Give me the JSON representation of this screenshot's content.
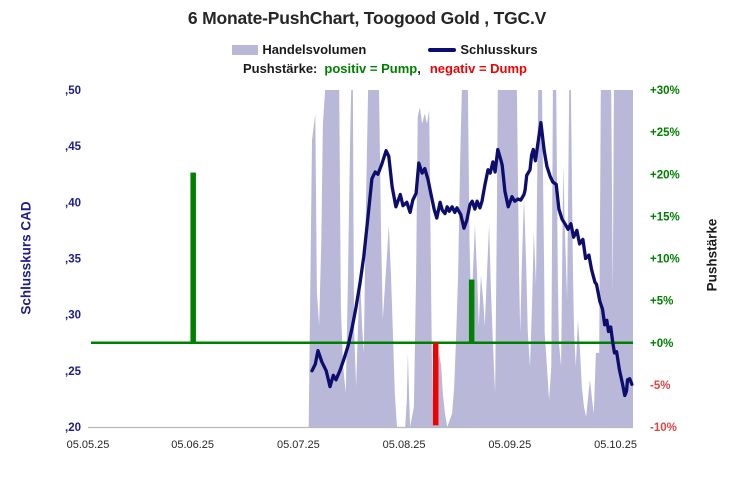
{
  "title": "6 Monate-PushChart,  Toogood Gold , TGC.V",
  "legend": {
    "volume_label": "Handelsvolumen",
    "price_label": "Schlusskurs",
    "push_prefix": "Pushstärke:",
    "push_positive": "positiv = Pump",
    "push_separator": ",",
    "push_negative": "negativ = Dump"
  },
  "colors": {
    "volume": "#b9b8d8",
    "price_line": "#0d0d6d",
    "push_positive": "#008000",
    "push_negative": "#ee0202",
    "zero_line": "#008000",
    "left_axis_text": "#1c1c8f",
    "right_axis_positive": "#008000",
    "right_axis_negative": "#e04545",
    "x_axis_text": "#262626",
    "baseline": "#b9b9b9"
  },
  "chart_data": {
    "type": "composite",
    "title": "6 Monate-PushChart,  Toogood Gold , TGC.V",
    "left_axis": {
      "title": "Schlusskurs CAD",
      "range": [
        0.2,
        0.5
      ],
      "ticks": [
        {
          "value": 0.5,
          "label": ",50"
        },
        {
          "value": 0.45,
          "label": ",45"
        },
        {
          "value": 0.4,
          "label": ",40"
        },
        {
          "value": 0.35,
          "label": ",35"
        },
        {
          "value": 0.3,
          "label": ",30"
        },
        {
          "value": 0.25,
          "label": ",25"
        },
        {
          "value": 0.2,
          "label": ",20"
        }
      ]
    },
    "right_axis": {
      "title": "Pushstärke",
      "unit": "%",
      "range": [
        -10,
        30
      ],
      "ticks": [
        {
          "value": 30,
          "label": "+30%",
          "tone": "positive"
        },
        {
          "value": 25,
          "label": "+25%",
          "tone": "positive"
        },
        {
          "value": 20,
          "label": "+20%",
          "tone": "positive"
        },
        {
          "value": 15,
          "label": "+15%",
          "tone": "positive"
        },
        {
          "value": 10,
          "label": "+10%",
          "tone": "positive"
        },
        {
          "value": 5,
          "label": "+5%",
          "tone": "positive"
        },
        {
          "value": 0,
          "label": "+0%",
          "tone": "positive"
        },
        {
          "value": -5,
          "label": "-5%",
          "tone": "negative"
        },
        {
          "value": -10,
          "label": "-10%",
          "tone": "negative"
        }
      ]
    },
    "x_axis": {
      "note": "x values of all series are fractions 0-1 of the horizontal axis; tick fractions below",
      "ticks": [
        {
          "x": 0.0,
          "label": "05.05.25"
        },
        {
          "x": 0.192,
          "label": "05.06.25"
        },
        {
          "x": 0.386,
          "label": "05.07.25"
        },
        {
          "x": 0.58,
          "label": "05.08.25"
        },
        {
          "x": 0.774,
          "label": "05.09.25"
        },
        {
          "x": 0.968,
          "label": "05.10.25"
        }
      ]
    },
    "zero_line_pct": 0,
    "series": [
      {
        "name": "Handelsvolumen",
        "type": "area",
        "axis": "none",
        "unit": "relative volume 0-1 (no volume axis shown, tall spikes clipped at plot top)",
        "points": [
          [
            0.405,
            0
          ],
          [
            0.411,
            0.85
          ],
          [
            0.417,
            0.93
          ],
          [
            0.42,
            0.4
          ],
          [
            0.424,
            0.3
          ],
          [
            0.428,
            0.55
          ],
          [
            0.431,
            0.9
          ],
          [
            0.435,
            1
          ],
          [
            0.461,
            1
          ],
          [
            0.464,
            0.35
          ],
          [
            0.468,
            0.18
          ],
          [
            0.473,
            0.1
          ],
          [
            0.477,
            0.45
          ],
          [
            0.481,
            0.85
          ],
          [
            0.483,
            1
          ],
          [
            0.486,
            1
          ],
          [
            0.488,
            0.3
          ],
          [
            0.492,
            0.12
          ],
          [
            0.495,
            0.28
          ],
          [
            0.499,
            0.45
          ],
          [
            0.503,
            0.3
          ],
          [
            0.506,
            0.22
          ],
          [
            0.51,
            0.65
          ],
          [
            0.514,
            1
          ],
          [
            0.534,
            1
          ],
          [
            0.538,
            0.55
          ],
          [
            0.541,
            0.32
          ],
          [
            0.545,
            0.42
          ],
          [
            0.549,
            0.52
          ],
          [
            0.552,
            0.6
          ],
          [
            0.556,
            0.45
          ],
          [
            0.56,
            0.25
          ],
          [
            0.563,
            0.1
          ],
          [
            0.567,
            0
          ],
          [
            0.582,
            0
          ],
          [
            0.585,
            0.08
          ],
          [
            0.587,
            0.22
          ],
          [
            0.589,
            0.1
          ],
          [
            0.591,
            0
          ],
          [
            0.598,
            0.06
          ],
          [
            0.602,
            0.45
          ],
          [
            0.605,
            0.92
          ],
          [
            0.609,
            0.95
          ],
          [
            0.613,
            0.9
          ],
          [
            0.618,
            0.93
          ],
          [
            0.622,
            0.9
          ],
          [
            0.626,
            0.94
          ],
          [
            0.629,
            0.5
          ],
          [
            0.631,
            0.2
          ],
          [
            0.633,
            0.08
          ],
          [
            0.637,
            0
          ],
          [
            0.64,
            0.08
          ],
          [
            0.644,
            0.22
          ],
          [
            0.648,
            0.18
          ],
          [
            0.651,
            0.1
          ],
          [
            0.655,
            0.04
          ],
          [
            0.659,
            0
          ],
          [
            0.668,
            0.04
          ],
          [
            0.672,
            0.12
          ],
          [
            0.675,
            0.25
          ],
          [
            0.679,
            0.45
          ],
          [
            0.683,
            0.8
          ],
          [
            0.686,
            1
          ],
          [
            0.697,
            1
          ],
          [
            0.7,
            0.55
          ],
          [
            0.703,
            0.35
          ],
          [
            0.706,
            0.45
          ],
          [
            0.71,
            0.6
          ],
          [
            0.714,
            0.45
          ],
          [
            0.717,
            0.3
          ],
          [
            0.721,
            0.45
          ],
          [
            0.725,
            0.38
          ],
          [
            0.728,
            0.3
          ],
          [
            0.732,
            0.45
          ],
          [
            0.736,
            0.6
          ],
          [
            0.739,
            0.42
          ],
          [
            0.743,
            0.25
          ],
          [
            0.747,
            0.1
          ],
          [
            0.75,
            0.6
          ],
          [
            0.752,
            1
          ],
          [
            0.787,
            1
          ],
          [
            0.791,
            0.45
          ],
          [
            0.793,
            0.28
          ],
          [
            0.796,
            0.48
          ],
          [
            0.8,
            0.68
          ],
          [
            0.804,
            0.48
          ],
          [
            0.807,
            0.28
          ],
          [
            0.811,
            0.18
          ],
          [
            0.815,
            0.38
          ],
          [
            0.818,
            0.58
          ],
          [
            0.822,
            0.42
          ],
          [
            0.826,
            1
          ],
          [
            0.833,
            1
          ],
          [
            0.837,
            0.45
          ],
          [
            0.838,
            0.28
          ],
          [
            0.842,
            0.18
          ],
          [
            0.846,
            0.08
          ],
          [
            0.85,
            0.18
          ],
          [
            0.853,
            1
          ],
          [
            0.859,
            1
          ],
          [
            0.862,
            0.45
          ],
          [
            0.864,
            0.25
          ],
          [
            0.868,
            0.18
          ],
          [
            0.872,
            0.78
          ],
          [
            0.875,
            0.58
          ],
          [
            0.879,
            0.38
          ],
          [
            0.883,
            1
          ],
          [
            0.886,
            1
          ],
          [
            0.89,
            0.45
          ],
          [
            0.892,
            0.28
          ],
          [
            0.895,
            0.18
          ],
          [
            0.899,
            0.32
          ],
          [
            0.903,
            0.22
          ],
          [
            0.906,
            0.12
          ],
          [
            0.91,
            0.06
          ],
          [
            0.914,
            0.03
          ],
          [
            0.917,
            0.08
          ],
          [
            0.921,
            0.14
          ],
          [
            0.925,
            0.08
          ],
          [
            0.928,
            0.04
          ],
          [
            0.932,
            0.22
          ],
          [
            0.938,
            0.22
          ],
          [
            0.941,
            1
          ],
          [
            0.96,
            1
          ],
          [
            0.963,
            0.4
          ],
          [
            0.965,
            1
          ],
          [
            1.0,
            1
          ]
        ]
      },
      {
        "name": "Schlusskurs",
        "type": "line",
        "axis": "left",
        "unit": "CAD",
        "points": [
          [
            0.411,
            0.25
          ],
          [
            0.417,
            0.256
          ],
          [
            0.422,
            0.268
          ],
          [
            0.429,
            0.258
          ],
          [
            0.437,
            0.25
          ],
          [
            0.444,
            0.236
          ],
          [
            0.45,
            0.246
          ],
          [
            0.455,
            0.242
          ],
          [
            0.463,
            0.251
          ],
          [
            0.47,
            0.261
          ],
          [
            0.477,
            0.272
          ],
          [
            0.484,
            0.287
          ],
          [
            0.492,
            0.307
          ],
          [
            0.499,
            0.328
          ],
          [
            0.506,
            0.352
          ],
          [
            0.514,
            0.388
          ],
          [
            0.521,
            0.421
          ],
          [
            0.527,
            0.427
          ],
          [
            0.532,
            0.425
          ],
          [
            0.539,
            0.434
          ],
          [
            0.547,
            0.446
          ],
          [
            0.552,
            0.441
          ],
          [
            0.558,
            0.414
          ],
          [
            0.565,
            0.396
          ],
          [
            0.573,
            0.407
          ],
          [
            0.578,
            0.397
          ],
          [
            0.585,
            0.4
          ],
          [
            0.591,
            0.391
          ],
          [
            0.596,
            0.402
          ],
          [
            0.602,
            0.408
          ],
          [
            0.607,
            0.435
          ],
          [
            0.613,
            0.426
          ],
          [
            0.618,
            0.43
          ],
          [
            0.624,
            0.42
          ],
          [
            0.629,
            0.408
          ],
          [
            0.635,
            0.394
          ],
          [
            0.64,
            0.386
          ],
          [
            0.646,
            0.4
          ],
          [
            0.65,
            0.393
          ],
          [
            0.655,
            0.39
          ],
          [
            0.659,
            0.396
          ],
          [
            0.663,
            0.392
          ],
          [
            0.668,
            0.396
          ],
          [
            0.673,
            0.391
          ],
          [
            0.677,
            0.395
          ],
          [
            0.684,
            0.389
          ],
          [
            0.69,
            0.377
          ],
          [
            0.695,
            0.384
          ],
          [
            0.701,
            0.398
          ],
          [
            0.705,
            0.401
          ],
          [
            0.71,
            0.394
          ],
          [
            0.714,
            0.401
          ],
          [
            0.719,
            0.395
          ],
          [
            0.723,
            0.401
          ],
          [
            0.728,
            0.415
          ],
          [
            0.734,
            0.429
          ],
          [
            0.738,
            0.426
          ],
          [
            0.743,
            0.436
          ],
          [
            0.747,
            0.427
          ],
          [
            0.752,
            0.447
          ],
          [
            0.758,
            0.437
          ],
          [
            0.76,
            0.433
          ],
          [
            0.765,
            0.41
          ],
          [
            0.771,
            0.396
          ],
          [
            0.778,
            0.405
          ],
          [
            0.783,
            0.401
          ],
          [
            0.789,
            0.403
          ],
          [
            0.794,
            0.402
          ],
          [
            0.8,
            0.407
          ],
          [
            0.802,
            0.411
          ],
          [
            0.805,
            0.424
          ],
          [
            0.811,
            0.429
          ],
          [
            0.814,
            0.442
          ],
          [
            0.817,
            0.447
          ],
          [
            0.821,
            0.437
          ],
          [
            0.831,
            0.471
          ],
          [
            0.837,
            0.446
          ],
          [
            0.842,
            0.432
          ],
          [
            0.848,
            0.423
          ],
          [
            0.853,
            0.418
          ],
          [
            0.859,
            0.416
          ],
          [
            0.864,
            0.394
          ],
          [
            0.87,
            0.385
          ],
          [
            0.875,
            0.381
          ],
          [
            0.881,
            0.376
          ],
          [
            0.886,
            0.381
          ],
          [
            0.891,
            0.369
          ],
          [
            0.897,
            0.375
          ],
          [
            0.902,
            0.363
          ],
          [
            0.908,
            0.367
          ],
          [
            0.913,
            0.35
          ],
          [
            0.919,
            0.353
          ],
          [
            0.924,
            0.34
          ],
          [
            0.93,
            0.329
          ],
          [
            0.933,
            0.327
          ],
          [
            0.939,
            0.312
          ],
          [
            0.944,
            0.305
          ],
          [
            0.948,
            0.291
          ],
          [
            0.952,
            0.295
          ],
          [
            0.955,
            0.285
          ],
          [
            0.959,
            0.289
          ],
          [
            0.963,
            0.275
          ],
          [
            0.966,
            0.266
          ],
          [
            0.97,
            0.267
          ],
          [
            0.975,
            0.251
          ],
          [
            0.981,
            0.238
          ],
          [
            0.985,
            0.228
          ],
          [
            0.988,
            0.232
          ],
          [
            0.99,
            0.242
          ],
          [
            0.994,
            0.243
          ],
          [
            0.998,
            0.238
          ]
        ]
      },
      {
        "name": "Pushstärke",
        "type": "bar",
        "axis": "right",
        "unit": "%",
        "points": [
          {
            "x": 0.193,
            "value": 20.2
          },
          {
            "x": 0.638,
            "value": -9.8
          },
          {
            "x": 0.704,
            "value": 7.5
          }
        ]
      }
    ]
  }
}
